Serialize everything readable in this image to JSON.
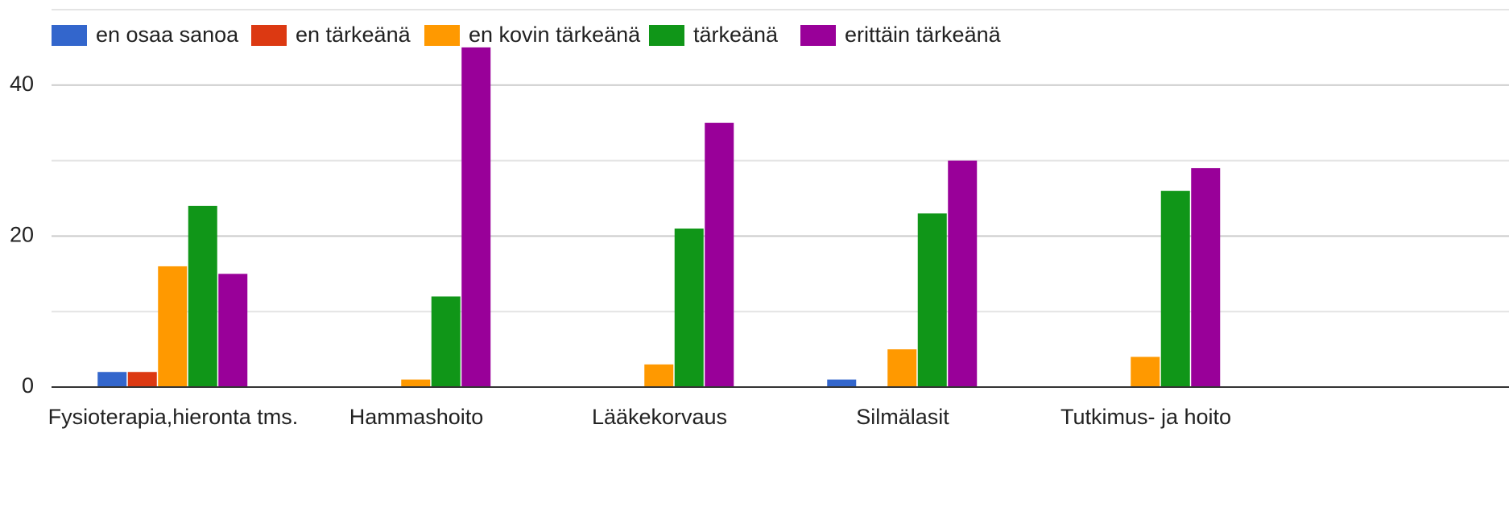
{
  "chart_data": {
    "type": "bar",
    "categories": [
      "Fysioterapia,hieronta tms.",
      "Hammashoito",
      "Lääkekorvaus",
      "Silmälasit",
      "Tutkimus- ja hoito"
    ],
    "series": [
      {
        "name": "en osaa sanoa",
        "color": "#3366cc",
        "values": [
          2,
          0,
          0,
          1,
          0
        ]
      },
      {
        "name": "en tärkeänä",
        "color": "#dc3912",
        "values": [
          2,
          0,
          0,
          0,
          0
        ]
      },
      {
        "name": "en kovin tärkeänä",
        "color": "#ff9900",
        "values": [
          16,
          1,
          3,
          5,
          4
        ]
      },
      {
        "name": "tärkeänä",
        "color": "#109618",
        "values": [
          24,
          12,
          21,
          23,
          26
        ]
      },
      {
        "name": "erittäin tärkeänä",
        "color": "#990099",
        "values": [
          15,
          45,
          35,
          30,
          29
        ]
      }
    ],
    "ylim": [
      0,
      50
    ],
    "yticks": [
      0,
      20,
      40
    ],
    "minor_grid": [
      10,
      30,
      50
    ],
    "grid": true,
    "legend": "top"
  }
}
